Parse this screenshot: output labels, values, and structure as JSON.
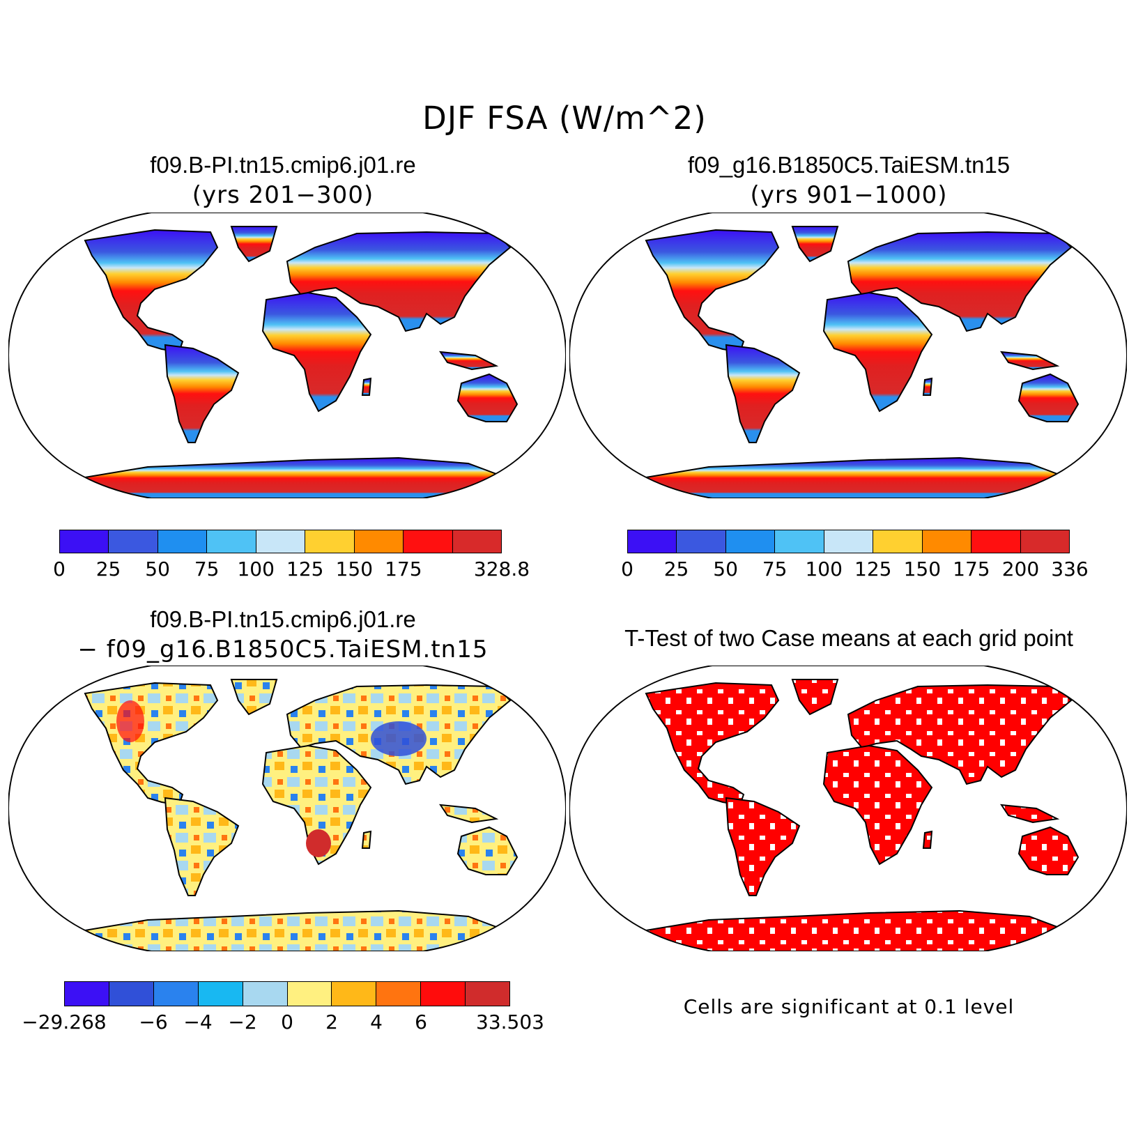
{
  "title": "DJF FSA (W/m^2)",
  "panels": [
    {
      "title": "f09.B-PI.tn15.cmip6.j01.re",
      "subtitle": "(yrs 201−300)",
      "colorbar": {
        "colors": [
          "#3c10f5",
          "#3b58e0",
          "#1f8ff0",
          "#4fc2f5",
          "#c8e6f8",
          "#ffd030",
          "#ff8a00",
          "#ff1010",
          "#d82a2a"
        ],
        "labels": [
          "0",
          "25",
          "50",
          "75",
          "100",
          "125",
          "150",
          "175",
          "",
          "328.8"
        ]
      }
    },
    {
      "title": "f09_g16.B1850C5.TaiESM.tn15",
      "subtitle": "(yrs 901−1000)",
      "colorbar": {
        "colors": [
          "#3c10f5",
          "#3b58e0",
          "#1f8ff0",
          "#4fc2f5",
          "#c8e6f8",
          "#ffd030",
          "#ff8a00",
          "#ff1010",
          "#d82a2a"
        ],
        "labels": [
          "0",
          "25",
          "50",
          "75",
          "100",
          "125",
          "150",
          "175",
          "200",
          "336"
        ]
      }
    },
    {
      "title": "f09.B-PI.tn15.cmip6.j01.re",
      "subtitle": "− f09_g16.B1850C5.TaiESM.tn15",
      "colorbar": {
        "colors": [
          "#3c10f5",
          "#3050d8",
          "#2a82ee",
          "#18b8f2",
          "#a8d8f0",
          "#fff080",
          "#ffb818",
          "#ff7410",
          "#ff0c0c",
          "#d02c2c"
        ],
        "labels": [
          "−29.268",
          "",
          "−6",
          "−4",
          "−2",
          "0",
          "2",
          "4",
          "6",
          "",
          "33.503"
        ]
      }
    },
    {
      "title": "T-Test of two Case means at each grid point",
      "note": "Cells are significant at 0.1 level",
      "sig_color": "#ff0000"
    }
  ]
}
